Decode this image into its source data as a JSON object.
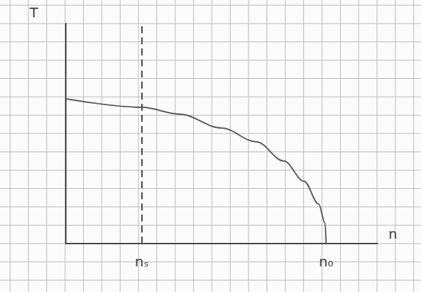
{
  "chart_data": {
    "type": "line",
    "x_label": "n",
    "y_label": "T",
    "x": [
      0,
      4.15,
      6.2,
      8.5,
      10.4,
      11.9,
      13.0,
      13.8,
      14.15,
      14.2
    ],
    "values": [
      7.9,
      7.43,
      7.06,
      6.3,
      5.55,
      4.5,
      3.4,
      2.15,
      1.1,
      0
    ],
    "color": "#5a5a5a",
    "xlim": [
      0,
      17
    ],
    "ylim": [
      0,
      12
    ],
    "xticks": [
      {
        "value": 4.15,
        "label": "nₛ"
      },
      {
        "value": 14.2,
        "label": "n₀"
      }
    ],
    "vline_x": 4.15,
    "line_style": "solid",
    "tick_labels": "x"
  }
}
